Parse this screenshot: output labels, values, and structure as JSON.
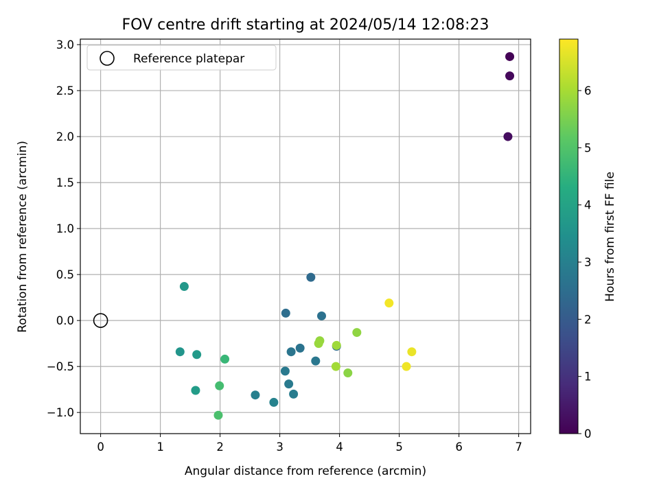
{
  "chart_data": {
    "type": "scatter",
    "title": "FOV centre drift starting at 2024/05/14 12:08:23",
    "xlabel": "Angular distance from reference (arcmin)",
    "ylabel": "Rotation from reference (arcmin)",
    "xlim": [
      -0.34,
      7.2
    ],
    "ylim": [
      -1.23,
      3.06
    ],
    "xticks": [
      0,
      1,
      2,
      3,
      4,
      5,
      6,
      7
    ],
    "yticks": [
      -1.0,
      -0.5,
      0.0,
      0.5,
      1.0,
      1.5,
      2.0,
      2.5,
      3.0
    ],
    "grid": true,
    "legend": {
      "position": "top-left",
      "entries": [
        {
          "label": "Reference platepar",
          "marker": "open-circle",
          "color": "#000000"
        }
      ]
    },
    "reference_point": {
      "x": 0.0,
      "y": 0.0
    },
    "colorbar": {
      "label": "Hours from first FF file",
      "colormap": "viridis",
      "range": [
        0,
        6.9
      ],
      "ticks": [
        0,
        1,
        2,
        3,
        4,
        5,
        6
      ]
    },
    "points": [
      {
        "x": 6.85,
        "y": 2.87,
        "c": 0.05
      },
      {
        "x": 6.85,
        "y": 2.66,
        "c": 0.15
      },
      {
        "x": 6.82,
        "y": 2.0,
        "c": 0.25
      },
      {
        "x": 3.52,
        "y": 0.47,
        "c": 2.4
      },
      {
        "x": 3.1,
        "y": 0.08,
        "c": 2.5
      },
      {
        "x": 3.7,
        "y": 0.05,
        "c": 2.6
      },
      {
        "x": 3.95,
        "y": -0.28,
        "c": 2.45
      },
      {
        "x": 3.34,
        "y": -0.3,
        "c": 2.65
      },
      {
        "x": 3.19,
        "y": -0.34,
        "c": 2.7
      },
      {
        "x": 3.6,
        "y": -0.44,
        "c": 2.75
      },
      {
        "x": 3.09,
        "y": -0.55,
        "c": 2.8
      },
      {
        "x": 3.15,
        "y": -0.69,
        "c": 2.85
      },
      {
        "x": 3.23,
        "y": -0.8,
        "c": 2.9
      },
      {
        "x": 2.59,
        "y": -0.81,
        "c": 3.0
      },
      {
        "x": 2.9,
        "y": -0.89,
        "c": 3.05
      },
      {
        "x": 1.4,
        "y": 0.37,
        "c": 3.7
      },
      {
        "x": 1.33,
        "y": -0.34,
        "c": 3.6
      },
      {
        "x": 1.61,
        "y": -0.37,
        "c": 3.75
      },
      {
        "x": 1.59,
        "y": -0.76,
        "c": 3.8
      },
      {
        "x": 2.08,
        "y": -0.42,
        "c": 4.6
      },
      {
        "x": 1.99,
        "y": -0.71,
        "c": 4.8
      },
      {
        "x": 1.97,
        "y": -1.03,
        "c": 4.9
      },
      {
        "x": 3.67,
        "y": -0.22,
        "c": 5.8
      },
      {
        "x": 3.65,
        "y": -0.25,
        "c": 5.85
      },
      {
        "x": 3.95,
        "y": -0.27,
        "c": 5.9
      },
      {
        "x": 4.29,
        "y": -0.13,
        "c": 5.75
      },
      {
        "x": 3.94,
        "y": -0.5,
        "c": 5.95
      },
      {
        "x": 4.14,
        "y": -0.57,
        "c": 5.7
      },
      {
        "x": 4.83,
        "y": 0.19,
        "c": 6.8
      },
      {
        "x": 5.21,
        "y": -0.34,
        "c": 6.7
      },
      {
        "x": 5.12,
        "y": -0.5,
        "c": 6.75
      }
    ]
  },
  "colors": {
    "grid": "#b0b0b0",
    "axis": "#000000",
    "reference_marker": "#000000"
  }
}
